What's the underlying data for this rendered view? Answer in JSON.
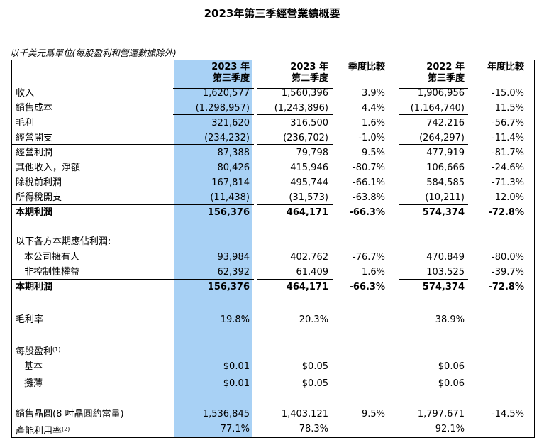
{
  "title": "2023年第三季經營業績概要",
  "unit_note": "以千美元爲單位(每股盈利和營運數據除外)",
  "header": {
    "col1_line1": "2023 年",
    "col1_line2": "第三季度",
    "col2_line1": "2023 年",
    "col2_line2": "第二季度",
    "col3": "季度比較",
    "col4_line1": "2022 年",
    "col4_line2": "第三季度",
    "col5": "年度比較"
  },
  "rows": [
    {
      "label": "收入",
      "v1": "1,620,577",
      "v2": "1,560,396",
      "v3": "3.9%",
      "v4": "1,906,956",
      "v5": "-15.0%"
    },
    {
      "label": "銷售成本",
      "v1": "(1,298,957)",
      "v2": "(1,243,896)",
      "v3": "4.4%",
      "v4": "(1,164,740)",
      "v5": "11.5%"
    },
    {
      "label": "毛利",
      "v1": "321,620",
      "v2": "316,500",
      "v3": "1.6%",
      "v4": "742,216",
      "v5": "-56.7%"
    },
    {
      "label": "經營開支",
      "v1": "(234,232)",
      "v2": "(236,702)",
      "v3": "-1.0%",
      "v4": "(264,297)",
      "v5": "-11.4%"
    },
    {
      "label": "經營利潤",
      "v1": "87,388",
      "v2": "79,798",
      "v3": "9.5%",
      "v4": "477,919",
      "v5": "-81.7%"
    },
    {
      "label": "其他收入，淨額",
      "v1": "80,426",
      "v2": "415,946",
      "v3": "-80.7%",
      "v4": "106,666",
      "v5": "-24.6%"
    },
    {
      "label": "除稅前利潤",
      "v1": "167,814",
      "v2": "495,744",
      "v3": "-66.1%",
      "v4": "584,585",
      "v5": "-71.3%"
    },
    {
      "label": "所得稅開支",
      "v1": "(11,438)",
      "v2": "(31,573)",
      "v3": "-63.8%",
      "v4": "(10,211)",
      "v5": "12.0%"
    },
    {
      "label": "本期利潤",
      "v1": "156,376",
      "v2": "464,171",
      "v3": "-66.3%",
      "v4": "574,374",
      "v5": "-72.8%"
    },
    {
      "label": "以下各方本期應佔利潤:"
    },
    {
      "label": "本公司擁有人",
      "v1": "93,984",
      "v2": "402,762",
      "v3": "-76.7%",
      "v4": "470,849",
      "v5": "-80.0%"
    },
    {
      "label": "非控制性權益",
      "v1": "62,392",
      "v2": "61,409",
      "v3": "1.6%",
      "v4": "103,525",
      "v5": "-39.7%"
    },
    {
      "label": "本期利潤",
      "v1": "156,376",
      "v2": "464,171",
      "v3": "-66.3%",
      "v4": "574,374",
      "v5": "-72.8%"
    },
    {
      "label": "毛利率",
      "v1": "19.8%",
      "v2": "20.3%",
      "v4": "38.9%"
    },
    {
      "label": "每股盈利",
      "sup": "(1)"
    },
    {
      "label": "基本",
      "v1": "$0.01",
      "v2": "$0.05",
      "v4": "$0.06"
    },
    {
      "label": "攤薄",
      "v1": "$0.01",
      "v2": "$0.05",
      "v4": "$0.06"
    },
    {
      "label": "銷售晶圓(8 吋晶圓約當量)",
      "v1": "1,536,845",
      "v2": "1,403,121",
      "v3": "9.5%",
      "v4": "1,797,671",
      "v5": "-14.5%"
    },
    {
      "label": "產能利用率",
      "sup": "(2)",
      "v1": "77.1%",
      "v2": "78.3%",
      "v4": "92.1%"
    }
  ]
}
